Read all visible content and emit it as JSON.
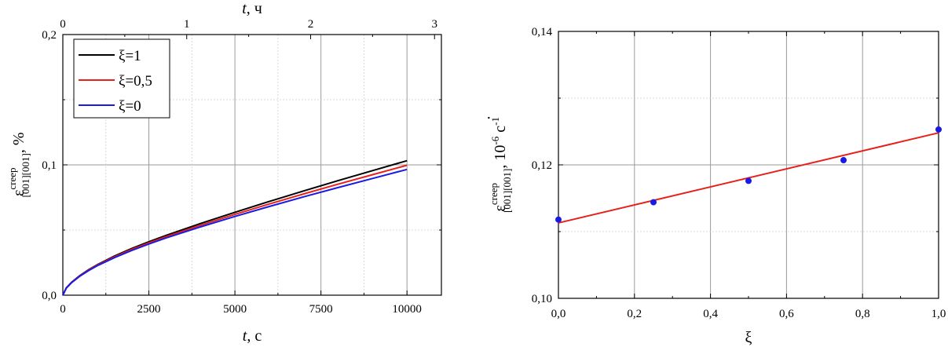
{
  "chart_data": [
    {
      "type": "line",
      "xlabel_var": "t",
      "xlabel_unit": ", с",
      "top_xlabel_var": "t",
      "top_xlabel_unit": ", ч",
      "ylabel_main": "ε",
      "ylabel_sup": "creep",
      "ylabel_sub": "[001][001]",
      "ylabel_unit": ", %",
      "xlim": [
        0,
        11000
      ],
      "ylim": [
        0,
        0.2
      ],
      "top_xlim": [
        0,
        3.0556
      ],
      "x_ticks": [
        0,
        2500,
        5000,
        7500,
        10000
      ],
      "x_tick_labels": [
        "0",
        "2500",
        "5000",
        "7500",
        "10000"
      ],
      "top_ticks": [
        0,
        1,
        2,
        3
      ],
      "top_tick_labels": [
        "0",
        "1",
        "2",
        "3"
      ],
      "y_ticks": [
        0,
        0.1,
        0.2
      ],
      "y_tick_labels": [
        "0,0",
        "0,1",
        "0,2"
      ],
      "grid": true,
      "legend_position": "top-left",
      "x": [
        0,
        100,
        250,
        500,
        750,
        1000,
        1500,
        2000,
        2500,
        3000,
        4000,
        5000,
        6000,
        7000,
        8000,
        9000,
        10000
      ],
      "series": [
        {
          "name": "ξ=1",
          "color": "#000000",
          "values": [
            0,
            0.0056,
            0.0098,
            0.0152,
            0.0196,
            0.0234,
            0.03,
            0.0358,
            0.041,
            0.0459,
            0.055,
            0.0636,
            0.0719,
            0.08,
            0.0879,
            0.0956,
            0.1032
          ]
        },
        {
          "name": "ξ=0,5",
          "color": "#e8201a",
          "values": [
            0,
            0.0055,
            0.0097,
            0.015,
            0.0193,
            0.023,
            0.0294,
            0.0351,
            0.0402,
            0.0449,
            0.0537,
            0.062,
            0.07,
            0.0777,
            0.0852,
            0.0925,
            0.0997
          ]
        },
        {
          "name": "ξ=0",
          "color": "#1a1ae6",
          "values": [
            0,
            0.0054,
            0.0095,
            0.0147,
            0.0189,
            0.0226,
            0.0288,
            0.0343,
            0.0393,
            0.0439,
            0.0524,
            0.0604,
            0.0681,
            0.0755,
            0.0826,
            0.0896,
            0.0965
          ]
        }
      ]
    },
    {
      "type": "scatter",
      "xlabel": "ξ",
      "ylabel_main": "ε",
      "ylabel_dot": "·",
      "ylabel_sup": "creep",
      "ylabel_sub": "[001][001]",
      "ylabel_unit_a": ", 10",
      "ylabel_unit_exp1": "-6",
      "ylabel_unit_b": " с",
      "ylabel_unit_exp2": "-1",
      "xlim": [
        0,
        1
      ],
      "ylim": [
        0.1,
        0.14
      ],
      "x_ticks": [
        0,
        0.2,
        0.4,
        0.6,
        0.8,
        1.0
      ],
      "x_tick_labels": [
        "0,0",
        "0,2",
        "0,4",
        "0,6",
        "0,8",
        "1,0"
      ],
      "y_ticks": [
        0.1,
        0.12,
        0.14
      ],
      "y_tick_labels": [
        "0,10",
        "0,12",
        "0,14"
      ],
      "grid": true,
      "points": {
        "x": [
          0,
          0.25,
          0.5,
          0.75,
          1.0
        ],
        "y": [
          0.1118,
          0.1144,
          0.1176,
          0.1207,
          0.1253
        ],
        "color": "#1a1ae6"
      },
      "fit": {
        "x": [
          0,
          1.0
        ],
        "y": [
          0.1113,
          0.1248
        ],
        "color": "#e8201a"
      }
    }
  ]
}
